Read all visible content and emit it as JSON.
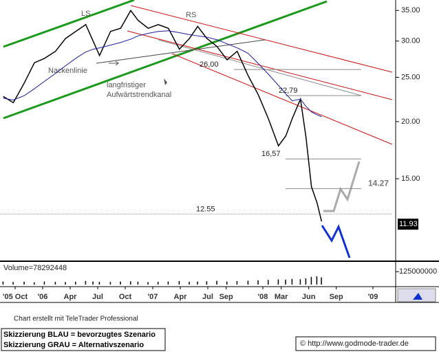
{
  "chart_data": {
    "type": "line",
    "log_scale": true,
    "x": [
      -1.3,
      -0.2,
      1.0,
      2.1,
      3.2,
      4.4,
      5.5,
      6.6,
      7.7,
      8.5,
      9.2,
      10.4,
      11.5,
      12.6,
      13.4,
      14.5,
      15.6,
      16.7,
      17.9,
      19.0,
      19.9,
      20.9,
      22.0,
      23.1,
      24.2,
      25.4,
      26.5,
      27.6,
      28.7,
      29.5,
      30.2,
      31.1,
      31.7,
      32.3,
      32.9,
      33.4
    ],
    "series": [
      {
        "color": "#000000",
        "values": [
          22.7,
          22.0,
          24.3,
          26.9,
          27.5,
          28.5,
          30.4,
          31.5,
          32.6,
          30.0,
          27.9,
          31.5,
          32.0,
          35.0,
          33.3,
          32.0,
          32.6,
          32.0,
          28.8,
          30.4,
          32.3,
          30.4,
          29.2,
          27.3,
          28.5,
          25.2,
          22.9,
          20.3,
          17.7,
          18.6,
          20.3,
          22.4,
          18.5,
          14.4,
          13.3,
          12.1
        ]
      },
      {
        "color": "#1a1aa0",
        "values": [
          22.5,
          22.3,
          22.8,
          23.6,
          24.5,
          25.5,
          26.5,
          27.5,
          28.4,
          28.8,
          29.0,
          29.4,
          29.8,
          30.3,
          30.8,
          31.2,
          31.5,
          31.6,
          31.3,
          31.0,
          30.8,
          30.6,
          30.2,
          29.6,
          29.0,
          28.2,
          26.8,
          25.4,
          24.0,
          23.0,
          22.2,
          22.4,
          21.6,
          21.0,
          20.7,
          20.5
        ]
      }
    ],
    "volume": [
      30000000,
      25000000,
      28000000,
      22000000,
      30000000,
      26000000,
      24000000,
      28000000,
      35000000,
      30000000,
      27000000,
      25000000,
      30000000,
      32000000,
      28000000,
      24000000,
      26000000,
      30000000,
      34000000,
      28000000,
      30000000,
      32000000,
      36000000,
      30000000,
      34000000,
      38000000,
      42000000,
      45000000,
      50000000,
      48000000,
      55000000,
      52000000,
      60000000,
      75000000,
      80000000,
      70000000
    ],
    "volume_label": "Volume=78292448",
    "volume_lim": [
      0,
      200000000
    ],
    "volume_ticks": [
      125000000
    ],
    "xlim": [
      -1.65,
      41.1
    ],
    "xticks": [
      {
        "value": 0,
        "label": "'05 Oct"
      },
      {
        "value": 3,
        "label": "'06"
      },
      {
        "value": 6,
        "label": "Apr"
      },
      {
        "value": 9,
        "label": "Jul"
      },
      {
        "value": 12,
        "label": "Oct"
      },
      {
        "value": 15,
        "label": "'07"
      },
      {
        "value": 18,
        "label": "Apr"
      },
      {
        "value": 21,
        "label": "Jul"
      },
      {
        "value": 23,
        "label": "Sep"
      },
      {
        "value": 27,
        "label": "'08"
      },
      {
        "value": 29,
        "label": "Mar"
      },
      {
        "value": 32,
        "label": "Jun"
      },
      {
        "value": 35,
        "label": "Sep"
      },
      {
        "value": 39,
        "label": "'09"
      }
    ],
    "ylim": [
      9.9,
      36.9
    ],
    "yticks": [
      {
        "value": 35,
        "label": "35.00"
      },
      {
        "value": 30,
        "label": "30.00"
      },
      {
        "value": 25,
        "label": "25.00"
      },
      {
        "value": 20,
        "label": "20.00"
      },
      {
        "value": 15,
        "label": "15.00"
      }
    ],
    "last_value": 11.93,
    "levels": [
      {
        "value": 26,
        "label": "26,00"
      },
      {
        "value": 22.79,
        "label": "22,79"
      },
      {
        "value": 16.57,
        "label": "16,57"
      },
      {
        "value": 14.27,
        "label": "14.27"
      },
      {
        "value": 12.55,
        "label": "12.55"
      }
    ],
    "annotations": {
      "ls": "LS",
      "rs": "RS",
      "neckline": "Nackenlinie",
      "channel_1": "langfristiger",
      "channel_2": "Aufwärtstrendkanal"
    },
    "footer": {
      "credit": "Chart erstellt mit TeleTrader Professional",
      "blue": "Skizzierung BLAU = bevorzugtes Szenario",
      "gray": "Skizzierung GRAU = Alternativszenario",
      "source": "© http://www.godmode-trader.de"
    }
  }
}
